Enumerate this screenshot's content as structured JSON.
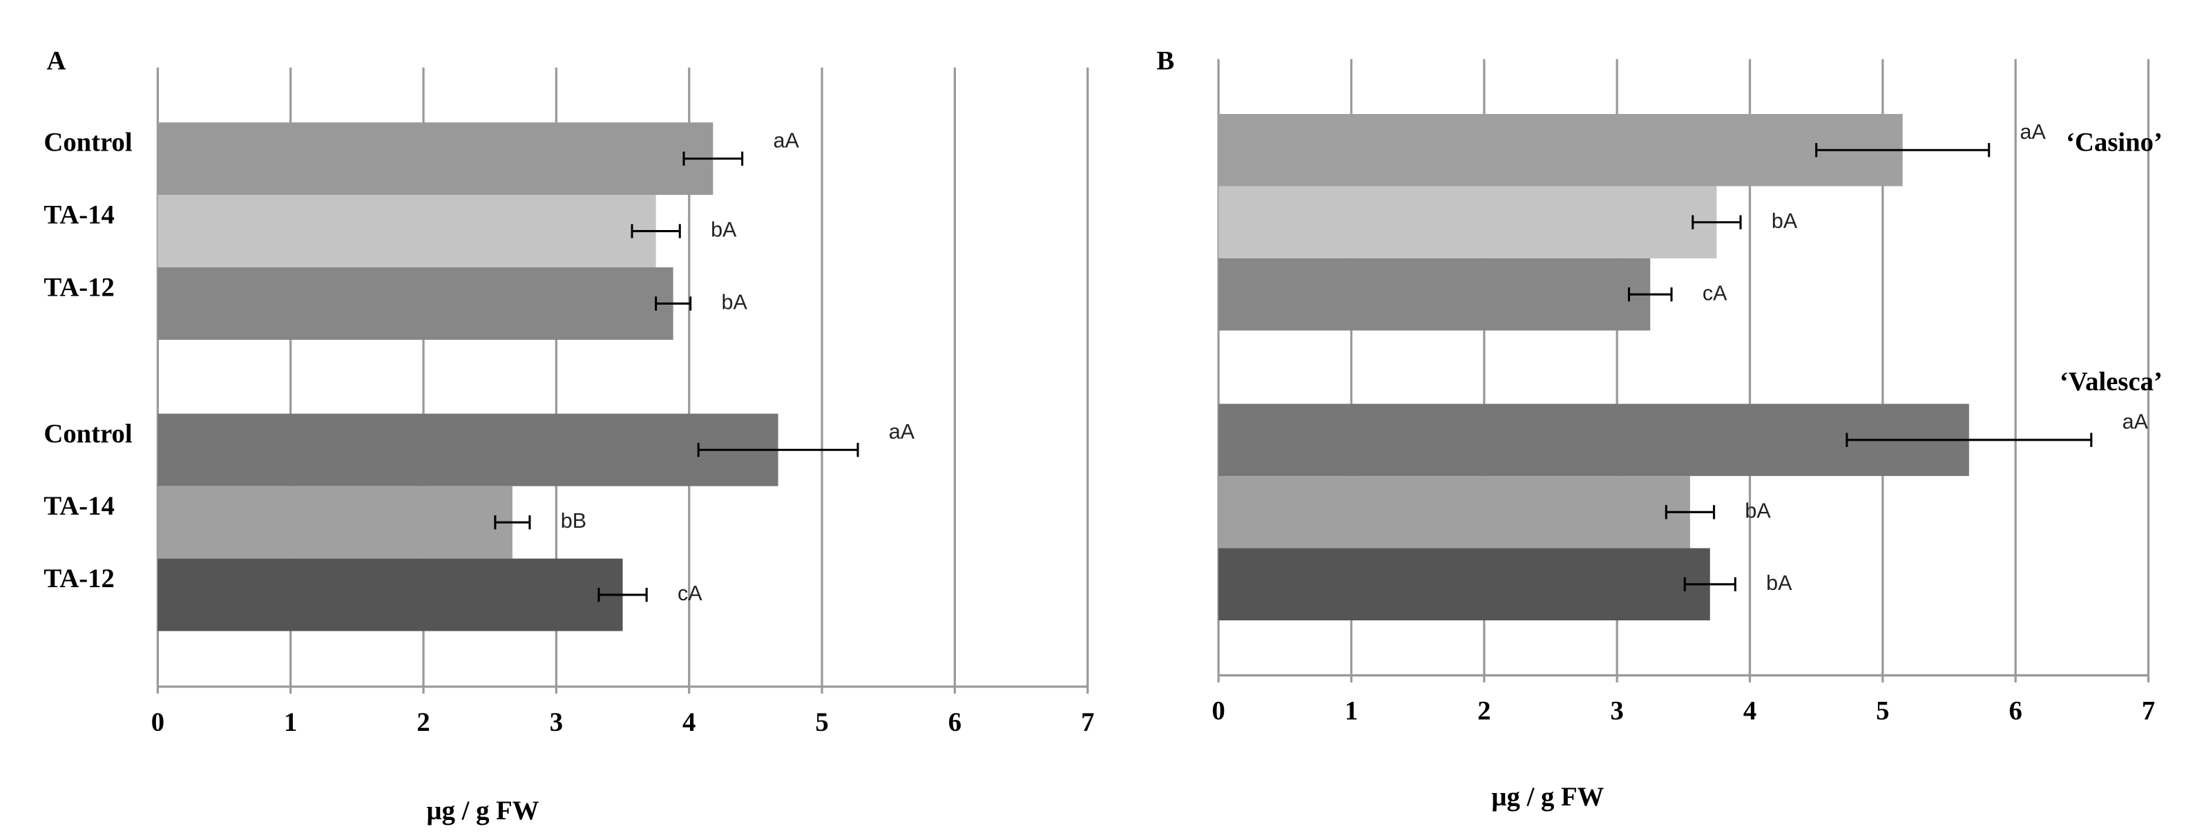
{
  "chart_data": [
    {
      "type": "bar",
      "orientation": "horizontal",
      "panel_label": "A",
      "categories": [
        "Control",
        "TA-14",
        "TA-12",
        "Control",
        "TA-14",
        "TA-12"
      ],
      "values": [
        4.18,
        3.75,
        3.88,
        4.67,
        2.67,
        3.5
      ],
      "errors": [
        0.22,
        0.18,
        0.13,
        0.6,
        0.13,
        0.18
      ],
      "letters": [
        "aA",
        "bA",
        "bA",
        "aA",
        "bB",
        "cA"
      ],
      "colors": [
        "#999999",
        "#c4c4c4",
        "#878787",
        "#767676",
        "#a0a0a0",
        "#555555"
      ],
      "xlim": [
        0,
        7
      ],
      "xticks": [
        0,
        1,
        2,
        3,
        4,
        5,
        6,
        7
      ],
      "grid": true,
      "xlabel": "µg / g FW"
    },
    {
      "type": "bar",
      "orientation": "horizontal",
      "panel_label": "B",
      "categories": [
        null,
        null,
        null,
        null,
        null,
        null
      ],
      "group_labels": [
        "‘Casino’",
        "‘Valesca’"
      ],
      "values": [
        5.15,
        3.75,
        3.25,
        5.65,
        3.55,
        3.7
      ],
      "errors": [
        0.65,
        0.18,
        0.16,
        0.92,
        0.18,
        0.19
      ],
      "letters": [
        "aA",
        "bA",
        "cA",
        "aA",
        "bA",
        "bA"
      ],
      "colors": [
        "#a0a0a0",
        "#c4c4c4",
        "#878787",
        "#777777",
        "#a0a0a0",
        "#555555"
      ],
      "xlim": [
        0,
        7
      ],
      "xticks": [
        0,
        1,
        2,
        3,
        4,
        5,
        6,
        7
      ],
      "grid": true,
      "xlabel": "µg / g FW"
    }
  ]
}
